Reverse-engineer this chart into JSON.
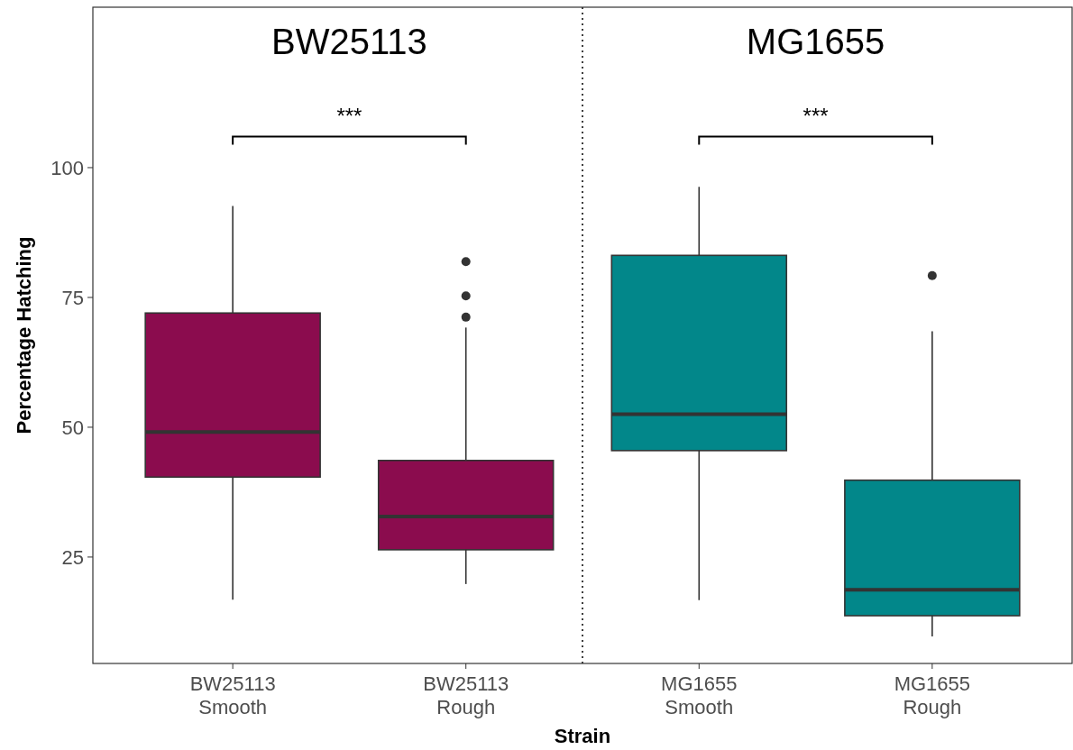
{
  "chart_data": {
    "type": "box",
    "xlabel": "Strain",
    "ylabel": "Percentage Hatching",
    "categories": [
      "BW25113\nSmooth",
      "BW25113\nRough",
      "MG1655\nSmooth",
      "MG1655\nRough"
    ],
    "colors": [
      "#8b0c4e",
      "#8b0c4e",
      "#02878a",
      "#02878a"
    ],
    "boxes": [
      {
        "low": 16.8,
        "q1": 40.4,
        "median": 49.1,
        "q3": 72.0,
        "high": 92.6
      },
      {
        "low": 19.8,
        "q1": 26.4,
        "median": 32.8,
        "q3": 43.6,
        "high": 69.2,
        "outliers": [
          81.9,
          75.3,
          71.2
        ]
      },
      {
        "low": 16.7,
        "q1": 45.5,
        "median": 52.5,
        "q3": 83.1,
        "high": 96.3
      },
      {
        "low": 9.7,
        "q1": 13.7,
        "median": 18.7,
        "q3": 39.8,
        "high": 68.5,
        "outliers": [
          79.2
        ]
      }
    ],
    "ylim": [
      4.5,
      130.9
    ],
    "yticks": [
      25,
      50,
      75,
      100
    ],
    "grid": false,
    "annotations": [
      "BW25113",
      "MG1655",
      "***",
      "***"
    ]
  }
}
